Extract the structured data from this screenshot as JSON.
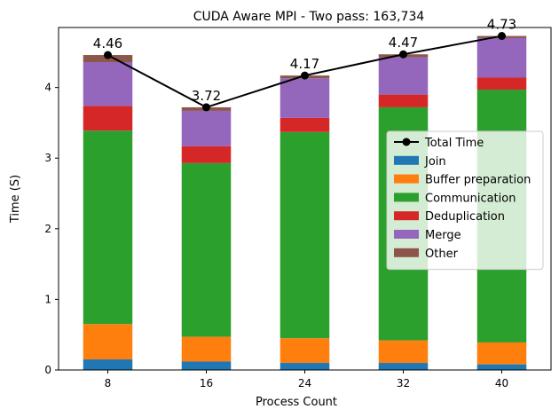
{
  "chart_data": {
    "type": "bar",
    "stacked": true,
    "title": "CUDA Aware MPI - Two pass: 163,734",
    "xlabel": "Process Count",
    "ylabel": "Time (S)",
    "categories": [
      "8",
      "16",
      "24",
      "32",
      "40"
    ],
    "ylim": [
      0,
      4.85
    ],
    "yticks": [
      0,
      1,
      2,
      3,
      4
    ],
    "series": [
      {
        "name": "Join",
        "color": "#1f77b4",
        "values": [
          0.15,
          0.12,
          0.1,
          0.1,
          0.08
        ]
      },
      {
        "name": "Buffer preparation",
        "color": "#ff7f0e",
        "values": [
          0.5,
          0.35,
          0.35,
          0.32,
          0.31
        ]
      },
      {
        "name": "Communication",
        "color": "#2ca02c",
        "values": [
          2.74,
          2.46,
          2.92,
          3.3,
          3.58
        ]
      },
      {
        "name": "Deduplication",
        "color": "#d62728",
        "values": [
          0.35,
          0.24,
          0.2,
          0.18,
          0.17
        ]
      },
      {
        "name": "Merge",
        "color": "#9467bd",
        "values": [
          0.62,
          0.5,
          0.56,
          0.53,
          0.56
        ]
      },
      {
        "name": "Other",
        "color": "#8c564b",
        "values": [
          0.1,
          0.05,
          0.04,
          0.04,
          0.03
        ]
      }
    ],
    "line": {
      "name": "Total Time",
      "color": "#000000",
      "values": [
        4.46,
        3.72,
        4.17,
        4.47,
        4.73
      ],
      "labels": [
        "4.46",
        "3.72",
        "4.17",
        "4.47",
        "4.73"
      ]
    },
    "legend": {
      "position": "right",
      "entries": [
        "Total Time",
        "Join",
        "Buffer preparation",
        "Communication",
        "Deduplication",
        "Merge",
        "Other"
      ]
    },
    "grid": false
  }
}
